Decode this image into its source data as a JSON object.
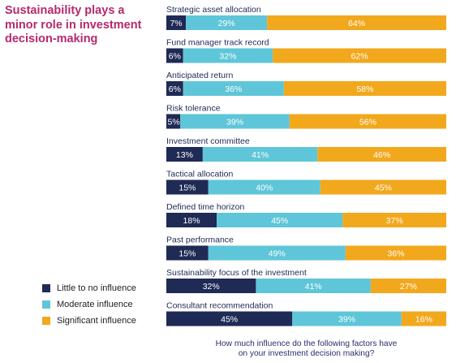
{
  "title": "Sustainability plays a minor role in investment decision-making",
  "caption_line1": "How much influence do the following factors have",
  "caption_line2": "on your investment decision making?",
  "chart_data": {
    "type": "bar",
    "orientation": "horizontal",
    "stacked": true,
    "value_suffix": "%",
    "categories": [
      "Strategic asset allocation",
      "Fund manager track record",
      "Anticipated return",
      "Risk tolerance",
      "Investment committee",
      "Tactical allocation",
      "Defined time horizon",
      "Past performance",
      "Sustainability focus of the investment",
      "Consultant recommendation"
    ],
    "series": [
      {
        "name": "Little to no influence",
        "color": "#1f2a55",
        "values": [
          7,
          6,
          6,
          5,
          13,
          15,
          18,
          15,
          32,
          45
        ]
      },
      {
        "name": "Moderate influence",
        "color": "#5ec6d8",
        "values": [
          29,
          32,
          36,
          39,
          41,
          40,
          45,
          49,
          41,
          39
        ]
      },
      {
        "name": "Significant influence",
        "color": "#f2a81d",
        "values": [
          64,
          62,
          58,
          56,
          46,
          45,
          37,
          36,
          27,
          16
        ]
      }
    ],
    "xlim": [
      0,
      100
    ],
    "legend_position": "bottom-left"
  }
}
